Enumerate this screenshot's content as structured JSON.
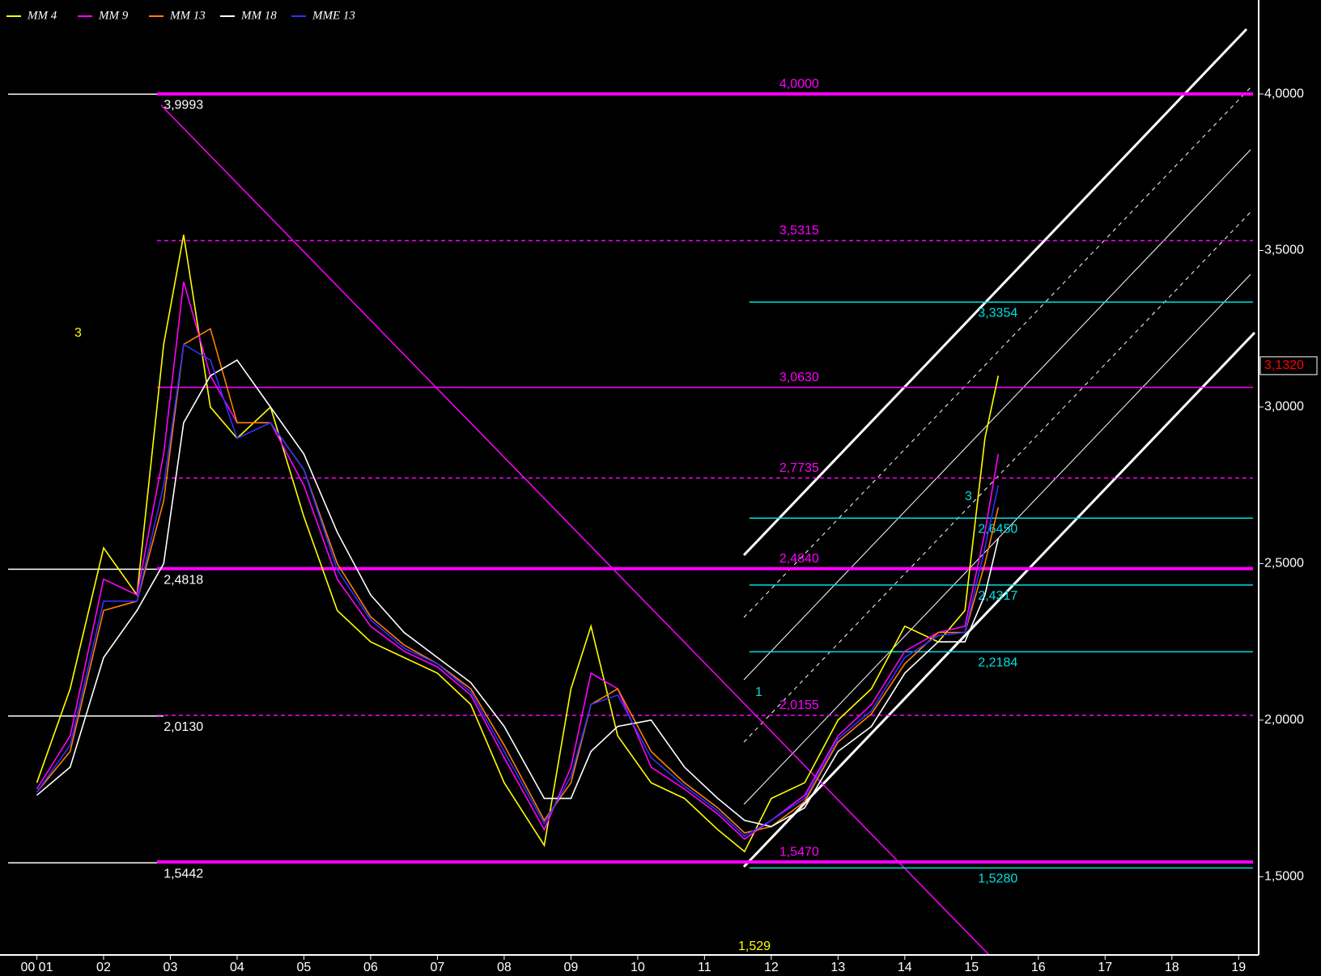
{
  "chart_data": {
    "type": "line",
    "x": [
      2001.0,
      2001.5,
      2002.0,
      2002.5,
      2002.9,
      2003.2,
      2003.6,
      2004.0,
      2004.5,
      2005.0,
      2005.5,
      2006.0,
      2006.5,
      2007.0,
      2007.5,
      2008.0,
      2008.6,
      2009.0,
      2009.3,
      2009.7,
      2010.2,
      2010.7,
      2011.2,
      2011.6,
      2012.0,
      2012.5,
      2013.0,
      2013.5,
      2014.0,
      2014.5,
      2014.9,
      2015.2,
      2015.4
    ],
    "series": [
      {
        "name": "MM 4",
        "color": "#ffff00",
        "values": [
          1.8,
          2.1,
          2.55,
          2.4,
          3.2,
          3.55,
          3.0,
          2.9,
          3.0,
          2.65,
          2.35,
          2.25,
          2.2,
          2.15,
          2.05,
          1.8,
          1.6,
          2.1,
          2.3,
          1.95,
          1.8,
          1.75,
          1.65,
          1.58,
          1.75,
          1.8,
          2.0,
          2.1,
          2.3,
          2.25,
          2.35,
          2.9,
          3.1
        ]
      },
      {
        "name": "MM 9",
        "color": "#ff00ff",
        "values": [
          1.78,
          1.95,
          2.45,
          2.4,
          2.85,
          3.4,
          3.1,
          2.95,
          2.95,
          2.75,
          2.45,
          2.3,
          2.22,
          2.17,
          2.08,
          1.88,
          1.65,
          1.85,
          2.15,
          2.1,
          1.85,
          1.78,
          1.7,
          1.62,
          1.68,
          1.76,
          1.95,
          2.05,
          2.22,
          2.28,
          2.3,
          2.6,
          2.85
        ]
      },
      {
        "name": "MM 13",
        "color": "#ff8000",
        "values": [
          1.77,
          1.9,
          2.35,
          2.38,
          2.7,
          3.2,
          3.25,
          2.95,
          2.95,
          2.8,
          2.5,
          2.33,
          2.24,
          2.18,
          2.1,
          1.92,
          1.68,
          1.8,
          2.05,
          2.1,
          1.9,
          1.8,
          1.72,
          1.64,
          1.66,
          1.74,
          1.93,
          2.02,
          2.18,
          2.28,
          2.28,
          2.5,
          2.68
        ]
      },
      {
        "name": "MM 18",
        "color": "#ffffff",
        "values": [
          1.76,
          1.85,
          2.2,
          2.35,
          2.5,
          2.95,
          3.1,
          3.15,
          3.0,
          2.85,
          2.6,
          2.4,
          2.28,
          2.2,
          2.12,
          1.98,
          1.75,
          1.75,
          1.9,
          1.98,
          2.0,
          1.85,
          1.75,
          1.68,
          1.66,
          1.72,
          1.9,
          1.98,
          2.15,
          2.25,
          2.25,
          2.4,
          2.58
        ]
      },
      {
        "name": "MME 13",
        "color": "#3030ff",
        "values": [
          1.77,
          1.92,
          2.38,
          2.38,
          2.75,
          3.2,
          3.15,
          2.9,
          2.95,
          2.8,
          2.48,
          2.32,
          2.23,
          2.18,
          2.09,
          1.9,
          1.67,
          1.82,
          2.05,
          2.08,
          1.88,
          1.79,
          1.71,
          1.63,
          1.68,
          1.75,
          1.94,
          2.03,
          2.2,
          2.27,
          2.28,
          2.55,
          2.75
        ]
      }
    ],
    "xlim": [
      2000.57,
      2019.3
    ],
    "xticks": [
      {
        "value": 2001,
        "label": "00 01"
      },
      {
        "value": 2002,
        "label": "02"
      },
      {
        "value": 2003,
        "label": "03"
      },
      {
        "value": 2004,
        "label": "04"
      },
      {
        "value": 2005,
        "label": "05"
      },
      {
        "value": 2006,
        "label": "06"
      },
      {
        "value": 2007,
        "label": "07"
      },
      {
        "value": 2008,
        "label": "08"
      },
      {
        "value": 2009,
        "label": "09"
      },
      {
        "value": 2010,
        "label": "10"
      },
      {
        "value": 2011,
        "label": "11"
      },
      {
        "value": 2012,
        "label": "12"
      },
      {
        "value": 2013,
        "label": "13"
      },
      {
        "value": 2014,
        "label": "14"
      },
      {
        "value": 2015,
        "label": "15"
      },
      {
        "value": 2016,
        "label": "16"
      },
      {
        "value": 2017,
        "label": "17"
      },
      {
        "value": 2018,
        "label": "18"
      },
      {
        "value": 2019,
        "label": "19"
      }
    ],
    "ylim": [
      1.25,
      4.3
    ],
    "yticks": [
      {
        "value": 1.5,
        "label": "1,5000"
      },
      {
        "value": 2,
        "label": "2,0000"
      },
      {
        "value": 2.5,
        "label": "2,5000"
      },
      {
        "value": 3,
        "label": "3,0000"
      },
      {
        "value": 3.5,
        "label": "3,5000"
      },
      {
        "value": 4,
        "label": "4,0000"
      }
    ],
    "white_levels": {
      "color": "#ffffff",
      "levels": [
        {
          "value": 3.9993,
          "label": "3,9993"
        },
        {
          "value": 2.4818,
          "label": "2,4818"
        },
        {
          "value": 2.013,
          "label": "2,0130"
        },
        {
          "value": 1.5442,
          "label": "1,5442"
        }
      ]
    },
    "magenta_levels": {
      "color": "#ff00ff",
      "levels": [
        {
          "value": 4.0,
          "label": "4,0000",
          "style": "bold"
        },
        {
          "value": 3.5315,
          "label": "3,5315",
          "style": "dashed"
        },
        {
          "value": 3.063,
          "label": "3,0630",
          "style": "solid"
        },
        {
          "value": 2.7735,
          "label": "2,7735",
          "style": "dashed"
        },
        {
          "value": 2.484,
          "label": "2,4840",
          "style": "bold"
        },
        {
          "value": 2.0155,
          "label": "2,0155",
          "style": "dashed"
        },
        {
          "value": 1.547,
          "label": "1,5470",
          "style": "bold"
        }
      ]
    },
    "cyan_levels": {
      "color": "#00e0e0",
      "levels": [
        {
          "value": 3.3354,
          "label": "3,3354"
        },
        {
          "value": 2.645,
          "label": "2,6450"
        },
        {
          "value": 2.4317,
          "label": "2,4317"
        },
        {
          "value": 2.2184,
          "label": "2,2184"
        },
        {
          "value": 1.528,
          "label": "1,5280"
        }
      ]
    },
    "last_price": {
      "value": 3.132,
      "label": "3,1320",
      "color": "#ff0000"
    },
    "annotations": [
      "3",
      "1,529",
      "1",
      "3"
    ]
  }
}
